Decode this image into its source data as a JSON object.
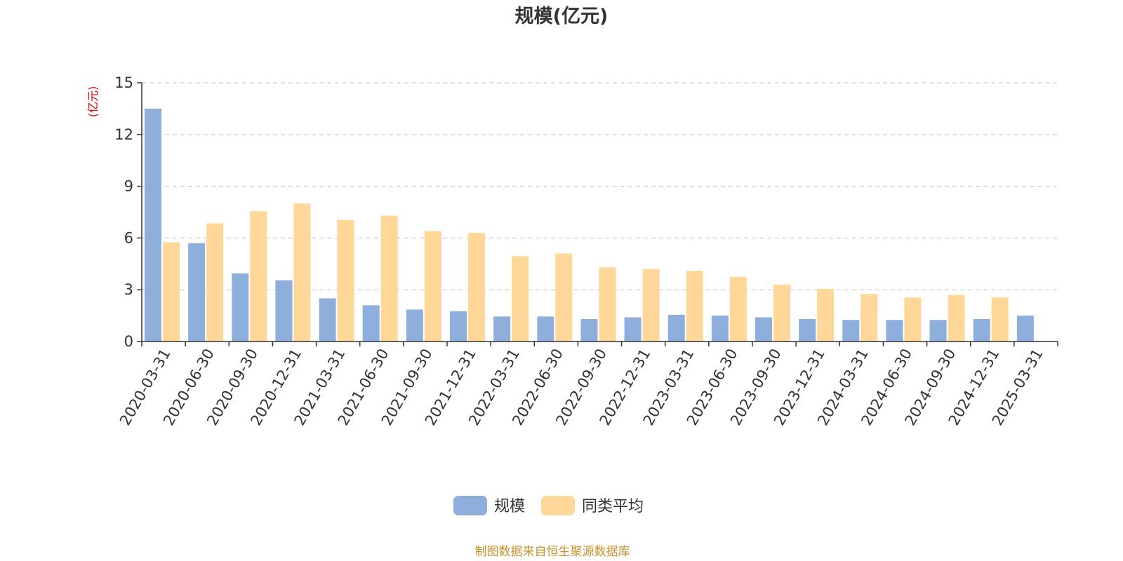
{
  "chart_data": {
    "type": "bar",
    "title": "规模(亿元)",
    "ylabel": "(亿元)",
    "xlabel": "",
    "ylim": [
      0,
      15
    ],
    "yticks": [
      0,
      3,
      6,
      9,
      12,
      15
    ],
    "grid": true,
    "legend_position": "bottom",
    "categories": [
      "2020-03-31",
      "2020-06-30",
      "2020-09-30",
      "2020-12-31",
      "2021-03-31",
      "2021-06-30",
      "2021-09-30",
      "2021-12-31",
      "2022-03-31",
      "2022-06-30",
      "2022-09-30",
      "2022-12-31",
      "2023-03-31",
      "2023-06-30",
      "2023-09-30",
      "2023-12-31",
      "2024-03-31",
      "2024-06-30",
      "2024-09-30",
      "2024-12-31",
      "2025-03-31"
    ],
    "series": [
      {
        "name": "规模",
        "color": "#8eaedc",
        "values": [
          13.5,
          5.7,
          3.95,
          3.55,
          2.5,
          2.1,
          1.85,
          1.75,
          1.45,
          1.45,
          1.3,
          1.4,
          1.55,
          1.5,
          1.4,
          1.3,
          1.25,
          1.25,
          1.25,
          1.3,
          1.5
        ]
      },
      {
        "name": "同类平均",
        "color": "#ffd899",
        "values": [
          5.75,
          6.85,
          7.55,
          8.0,
          7.05,
          7.3,
          6.4,
          6.3,
          4.95,
          5.1,
          4.3,
          4.2,
          4.1,
          3.75,
          3.3,
          3.05,
          2.75,
          2.55,
          2.7,
          2.55,
          null
        ]
      }
    ],
    "source_note": "制图数据来自恒生聚源数据库"
  }
}
